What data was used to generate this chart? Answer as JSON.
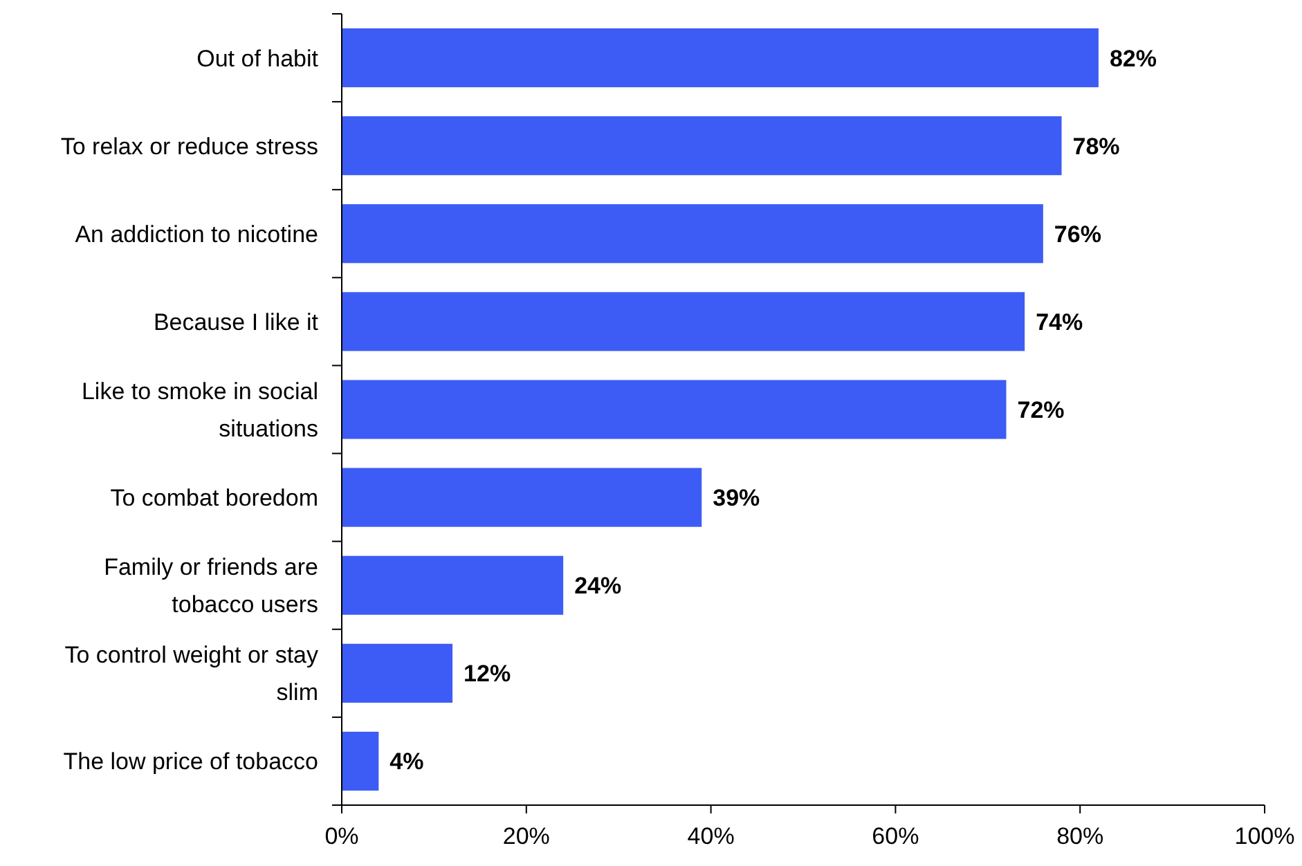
{
  "chart_data": {
    "type": "bar",
    "orientation": "horizontal",
    "categories": [
      "Out of habit",
      "To relax or reduce stress",
      "An addiction to nicotine",
      "Because I like it",
      "Like to smoke in social situations",
      "To combat boredom",
      "Family or friends are tobacco users",
      "To control weight or stay slim",
      "The low price of tobacco"
    ],
    "values": [
      82,
      78,
      76,
      74,
      72,
      39,
      24,
      12,
      4
    ],
    "value_labels": [
      "82%",
      "78%",
      "76%",
      "74%",
      "72%",
      "39%",
      "24%",
      "12%",
      "4%"
    ],
    "color": "#3d5cf5",
    "xlim": [
      0,
      100
    ],
    "xticks": [
      {
        "value": 0,
        "label": "0%"
      },
      {
        "value": 20,
        "label": "20%"
      },
      {
        "value": 40,
        "label": "40%"
      },
      {
        "value": 60,
        "label": "60%"
      },
      {
        "value": 80,
        "label": "80%"
      },
      {
        "value": 100,
        "label": "100%"
      }
    ],
    "grid": false
  }
}
